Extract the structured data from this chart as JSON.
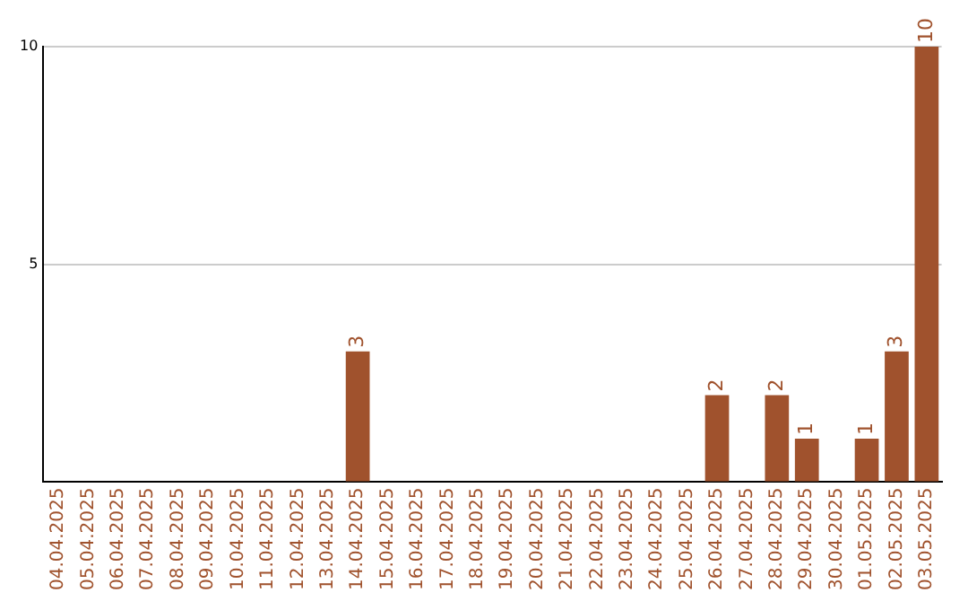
{
  "chart_data": {
    "type": "bar",
    "categories": [
      "04.04.2025",
      "05.04.2025",
      "06.04.2025",
      "07.04.2025",
      "08.04.2025",
      "09.04.2025",
      "10.04.2025",
      "11.04.2025",
      "12.04.2025",
      "13.04.2025",
      "14.04.2025",
      "15.04.2025",
      "16.04.2025",
      "17.04.2025",
      "18.04.2025",
      "19.04.2025",
      "20.04.2025",
      "21.04.2025",
      "22.04.2025",
      "23.04.2025",
      "24.04.2025",
      "25.04.2025",
      "26.04.2025",
      "27.04.2025",
      "28.04.2025",
      "29.04.2025",
      "30.04.2025",
      "01.05.2025",
      "02.05.2025",
      "03.05.2025"
    ],
    "values": [
      0,
      0,
      0,
      0,
      0,
      0,
      0,
      0,
      0,
      0,
      3,
      0,
      0,
      0,
      0,
      0,
      0,
      0,
      0,
      0,
      0,
      0,
      2,
      0,
      2,
      1,
      0,
      1,
      3,
      10
    ],
    "value_labels": [
      null,
      null,
      null,
      null,
      null,
      null,
      null,
      null,
      null,
      null,
      "3",
      null,
      null,
      null,
      null,
      null,
      null,
      null,
      null,
      null,
      null,
      null,
      "2",
      null,
      "2",
      "1",
      null,
      "1",
      "3",
      "10"
    ],
    "color": "#a0522d",
    "ylim": [
      0,
      10
    ],
    "yticks": [
      {
        "value": 0,
        "label": null
      },
      5,
      10
    ],
    "grid": "y"
  }
}
